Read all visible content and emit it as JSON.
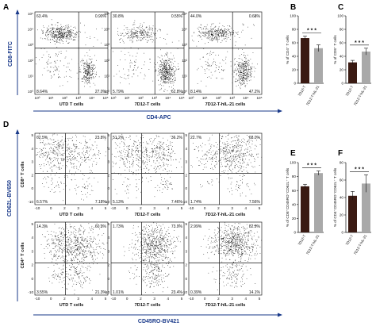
{
  "panels": {
    "A": "A",
    "B": "B",
    "C": "C",
    "D": "D",
    "E": "E",
    "F": "F"
  },
  "colors": {
    "blue": "#1a3a8a",
    "dark_bar": "#3a1a12",
    "gray_bar": "#a9a9a9"
  },
  "flow_A": {
    "y_title": "CD8-FITC",
    "x_title": "CD4-APC",
    "yticks": [
      "10⁵",
      "10⁴",
      "10³",
      "10²",
      "10¹",
      "10⁰"
    ],
    "xticks": [
      "10⁰",
      "10¹",
      "10²",
      "10³",
      "10⁴",
      "10⁵"
    ],
    "plots": [
      {
        "condition": "UTD T cells",
        "ul": "63.4%",
        "ur": "0.90%",
        "ll": "8.64%",
        "lr": "27.0%"
      },
      {
        "condition": "7D12-T cells",
        "ul": "30.8%",
        "ur": "0.55%",
        "ll": "5.79%",
        "lr": "62.8%"
      },
      {
        "condition": "7D12-T-hIL-21  cells",
        "ul": "44.0%",
        "ur": "0.68%",
        "ll": "8.14%",
        "lr": "47.2%"
      }
    ]
  },
  "flow_D": {
    "y_title": "CD62L-BV650",
    "x_title": "CD45RO-BV421",
    "row_labels": [
      "CD8⁺ T cells",
      "CD4⁺ T cells"
    ],
    "yticks": [
      "5",
      "4",
      "3",
      "2",
      "0",
      "-10"
    ],
    "xticks": [
      "-10",
      "0",
      "2",
      "3",
      "4",
      "5"
    ],
    "plots_top": [
      {
        "ul": "62.5%",
        "ur": "23.8%",
        "ll": "6.57%",
        "lr": "7.18%"
      },
      {
        "ul": "51.2%",
        "ur": "36.2%",
        "ll": "5.13%",
        "lr": "7.46%"
      },
      {
        "ul": "22.7%",
        "ur": "68.0%",
        "ll": "1.74%",
        "lr": "7.56%"
      }
    ],
    "plots_bottom": [
      {
        "condition": "UTD T cells",
        "ul": "14.3%",
        "ur": "60.9%",
        "ll": "3.55%",
        "lr": "21.3%"
      },
      {
        "condition": "7D12-T cells",
        "ul": "1.73%",
        "ur": "73.9%",
        "ll": "1.01%",
        "lr": "23.4%"
      },
      {
        "condition": "7D12-T-hIL-21  cells",
        "ul": "2.99%",
        "ur": "82.9%",
        "ll": "0.39%",
        "lr": "14.1%"
      }
    ]
  },
  "chart_data": [
    {
      "panel": "B",
      "type": "bar",
      "categories": [
        "7D12-T",
        "7D12-T-hIL-21"
      ],
      "values": [
        67,
        52
      ],
      "errors": [
        3,
        5
      ],
      "ylabel": "% of CD4⁺ T cells",
      "ylim": [
        0,
        100
      ],
      "yticks": [
        "100",
        "80",
        "60",
        "40",
        "20",
        "0"
      ],
      "significance": "* * *"
    },
    {
      "panel": "C",
      "type": "bar",
      "categories": [
        "7D12-T",
        "7D12-T-hIL-21"
      ],
      "values": [
        31,
        47
      ],
      "errors": [
        3,
        5
      ],
      "ylabel": "% of CD8⁺ T cells",
      "ylim": [
        0,
        100
      ],
      "yticks": [
        "100",
        "80",
        "60",
        "40",
        "20",
        "0"
      ],
      "significance": "* * *"
    },
    {
      "panel": "E",
      "type": "bar",
      "categories": [
        "7D12-T",
        "7D12-T-hIL-21"
      ],
      "values": [
        66,
        85
      ],
      "errors": [
        3,
        3
      ],
      "ylabel": "% of CD8⁺CD45RO⁺CD62L⁺ T cells",
      "ylim": [
        0,
        100
      ],
      "yticks": [
        "100",
        "80",
        "60",
        "40",
        "20",
        "0"
      ],
      "significance": "* * *"
    },
    {
      "panel": "F",
      "type": "bar",
      "categories": [
        "7D12-T",
        "7D12-T-hIL-21"
      ],
      "values": [
        42,
        56
      ],
      "errors": [
        5,
        10
      ],
      "ylabel": "% of CD4⁺CD45RO⁺CD62L⁺ T cells",
      "ylim": [
        0,
        80
      ],
      "yticks": [
        "80",
        "60",
        "40",
        "20",
        "0"
      ],
      "significance": "* * *"
    }
  ]
}
